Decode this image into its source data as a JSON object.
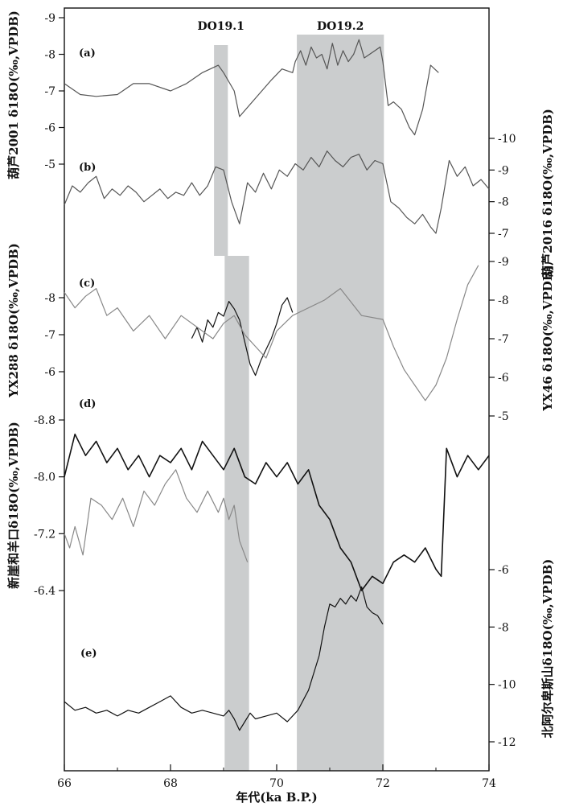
{
  "chart_data": {
    "type": "line",
    "x_axis": {
      "label": "年代(ka B.P.)",
      "range": [
        66,
        74
      ],
      "ticks": [
        66,
        68,
        70,
        72,
        74
      ]
    },
    "bands": [
      {
        "label": "DO19.1",
        "x": [
          68.82,
          69.08
        ],
        "panels": "a-b"
      },
      {
        "label": "",
        "x": [
          69.02,
          69.48
        ],
        "panels": "c-e"
      },
      {
        "label": "DO19.2",
        "x": [
          70.38,
          72.02
        ],
        "panels": "all"
      }
    ],
    "panels": [
      {
        "label": "(a)",
        "axis_side": "left",
        "axis_title": "葫芦2001 δ18O(‰,VPDB)",
        "ticks": [
          -9,
          -8,
          -7,
          -6,
          -5
        ],
        "tick_labels": [
          "-9",
          "-8",
          "-7",
          "-6",
          "-5"
        ],
        "series": [
          {
            "name": "",
            "color": "#555555",
            "x": [
              66.0,
              66.3,
              66.6,
              67.0,
              67.3,
              67.6,
              68.0,
              68.3,
              68.6,
              68.9,
              69.0,
              69.2,
              69.3,
              69.6,
              69.9,
              70.1,
              70.3,
              70.35,
              70.45,
              70.55,
              70.65,
              70.75,
              70.85,
              70.95,
              71.05,
              71.15,
              71.25,
              71.35,
              71.45,
              71.55,
              71.65,
              71.75,
              71.85,
              71.95,
              72.0,
              72.1,
              72.2,
              72.35,
              72.5,
              72.6,
              72.75,
              72.9,
              73.05
            ],
            "y": [
              -7.2,
              -6.9,
              -6.85,
              -6.9,
              -7.2,
              -7.2,
              -7.0,
              -7.2,
              -7.5,
              -7.7,
              -7.5,
              -7.0,
              -6.3,
              -6.8,
              -7.3,
              -7.6,
              -7.5,
              -7.8,
              -8.1,
              -7.7,
              -8.2,
              -7.9,
              -8.0,
              -7.6,
              -8.3,
              -7.7,
              -8.1,
              -7.8,
              -8.0,
              -8.4,
              -7.9,
              -8.0,
              -8.1,
              -8.2,
              -7.8,
              -6.6,
              -6.7,
              -6.5,
              -6.0,
              -5.8,
              -6.5,
              -7.7,
              -7.5
            ]
          }
        ]
      },
      {
        "label": "(b)",
        "axis_side": "right",
        "axis_title": "葫芦2016 δ18O(‰,VPDB)",
        "ticks": [
          -10,
          -9,
          -8,
          -7
        ],
        "tick_labels": [
          "-10",
          "-9",
          "-8",
          "-7"
        ],
        "series": [
          {
            "name": "",
            "color": "#555555",
            "x": [
              66.0,
              66.15,
              66.3,
              66.45,
              66.6,
              66.75,
              66.9,
              67.05,
              67.2,
              67.35,
              67.5,
              67.65,
              67.8,
              67.95,
              68.1,
              68.25,
              68.4,
              68.55,
              68.7,
              68.85,
              69.0,
              69.15,
              69.3,
              69.45,
              69.6,
              69.75,
              69.9,
              70.05,
              70.2,
              70.35,
              70.5,
              70.65,
              70.8,
              70.95,
              71.1,
              71.25,
              71.4,
              71.55,
              71.7,
              71.85,
              72.0,
              72.15,
              72.3,
              72.45,
              72.6,
              72.75,
              72.9,
              73.0,
              73.1,
              73.25,
              73.4,
              73.55,
              73.7,
              73.85,
              74.0
            ],
            "y": [
              -7.9,
              -8.5,
              -8.3,
              -8.6,
              -8.8,
              -8.1,
              -8.4,
              -8.2,
              -8.5,
              -8.3,
              -8.0,
              -8.2,
              -8.4,
              -8.1,
              -8.3,
              -8.2,
              -8.6,
              -8.2,
              -8.5,
              -9.1,
              -9.0,
              -8.0,
              -7.3,
              -8.6,
              -8.3,
              -8.9,
              -8.4,
              -9.0,
              -8.8,
              -9.2,
              -9.0,
              -9.4,
              -9.1,
              -9.6,
              -9.3,
              -9.1,
              -9.4,
              -9.5,
              -9.0,
              -9.3,
              -9.2,
              -8.0,
              -7.8,
              -7.5,
              -7.3,
              -7.6,
              -7.2,
              -7.0,
              -7.8,
              -9.3,
              -8.8,
              -9.1,
              -8.5,
              -8.7,
              -8.4
            ]
          }
        ]
      },
      {
        "label": "(c)",
        "axis_side": "left",
        "axis_title": "YX288 δ18O(‰,VPDB)",
        "ticks": [
          -8,
          -7,
          -6
        ],
        "tick_labels": [
          "-8",
          "-7",
          "-6"
        ],
        "series": [
          {
            "name": "",
            "color": "#111111",
            "x": [
              68.4,
              68.5,
              68.6,
              68.7,
              68.8,
              68.9,
              69.0,
              69.1,
              69.2,
              69.3,
              69.4,
              69.5,
              69.6,
              69.7,
              69.8,
              69.9,
              70.0,
              70.1,
              70.2,
              70.3
            ],
            "y": [
              -6.9,
              -7.2,
              -6.8,
              -7.4,
              -7.2,
              -7.6,
              -7.5,
              -7.9,
              -7.7,
              -7.4,
              -6.8,
              -6.2,
              -5.9,
              -6.3,
              -6.6,
              -6.9,
              -7.3,
              -7.8,
              -8.0,
              -7.6
            ]
          }
        ]
      },
      {
        "label": "",
        "axis_side": "right",
        "axis_title": "YX46 δ18O(‰,VPDB)",
        "ticks": [
          -9,
          -8,
          -7,
          -6,
          -5
        ],
        "tick_labels": [
          "-9",
          "-8",
          "-7",
          "-6",
          "-5"
        ],
        "series": [
          {
            "name": "",
            "color": "#888888",
            "x": [
              66.0,
              66.2,
              66.4,
              66.6,
              66.8,
              67.0,
              67.3,
              67.6,
              67.9,
              68.2,
              68.5,
              68.8,
              69.0,
              69.2,
              69.4,
              69.6,
              69.8,
              70.0,
              70.3,
              70.6,
              70.9,
              71.2,
              71.6,
              72.0,
              72.2,
              72.4,
              72.6,
              72.8,
              73.0,
              73.2,
              73.4,
              73.6,
              73.8
            ],
            "y": [
              -8.2,
              -7.8,
              -8.1,
              -8.3,
              -7.6,
              -7.8,
              -7.2,
              -7.6,
              -7.0,
              -7.6,
              -7.3,
              -7.0,
              -7.4,
              -7.6,
              -7.1,
              -6.8,
              -6.5,
              -7.2,
              -7.6,
              -7.8,
              -8.0,
              -8.3,
              -7.6,
              -7.5,
              -6.8,
              -6.2,
              -5.8,
              -5.4,
              -5.8,
              -6.5,
              -7.5,
              -8.4,
              -8.9
            ]
          }
        ]
      },
      {
        "label": "(d)",
        "axis_side": "left",
        "axis_title": "新崖和羊口δ18O(‰,VPDB)",
        "ticks": [
          -8.8,
          -8.0,
          -7.2,
          -6.4
        ],
        "tick_labels": [
          "-8.8",
          "-8.0",
          "-7.2",
          "-6.4"
        ],
        "series": [
          {
            "name": "",
            "color": "#111111",
            "x": [
              66.0,
              66.2,
              66.4,
              66.6,
              66.8,
              67.0,
              67.2,
              67.4,
              67.6,
              67.8,
              68.0,
              68.2,
              68.4,
              68.6,
              68.8,
              69.0,
              69.2,
              69.4,
              69.6,
              69.8,
              70.0,
              70.2,
              70.4,
              70.6,
              70.8,
              71.0,
              71.2,
              71.4,
              71.6,
              71.8,
              72.0,
              72.2,
              72.4,
              72.6,
              72.8,
              73.0,
              73.1,
              73.2,
              73.4,
              73.6,
              73.8,
              74.0
            ],
            "y": [
              -8.0,
              -8.6,
              -8.3,
              -8.5,
              -8.2,
              -8.4,
              -8.1,
              -8.3,
              -8.0,
              -8.3,
              -8.2,
              -8.4,
              -8.1,
              -8.5,
              -8.3,
              -8.1,
              -8.4,
              -8.0,
              -7.9,
              -8.2,
              -8.0,
              -8.2,
              -7.9,
              -8.1,
              -7.6,
              -7.4,
              -7.0,
              -6.8,
              -6.4,
              -6.6,
              -6.5,
              -6.8,
              -6.9,
              -6.8,
              -7.0,
              -6.7,
              -6.6,
              -8.4,
              -8.0,
              -8.3,
              -8.1,
              -8.3
            ]
          },
          {
            "name": "",
            "color": "#888888",
            "x": [
              66.0,
              66.1,
              66.2,
              66.35,
              66.5,
              66.7,
              66.9,
              67.1,
              67.3,
              67.5,
              67.7,
              67.9,
              68.1,
              68.3,
              68.5,
              68.7,
              68.9,
              69.0,
              69.1,
              69.2,
              69.3,
              69.45
            ],
            "y": [
              -7.2,
              -7.0,
              -7.3,
              -6.9,
              -7.7,
              -7.6,
              -7.4,
              -7.7,
              -7.3,
              -7.8,
              -7.6,
              -7.9,
              -8.1,
              -7.7,
              -7.5,
              -7.8,
              -7.5,
              -7.7,
              -7.4,
              -7.6,
              -7.1,
              -6.8
            ]
          }
        ]
      },
      {
        "label": "(e)",
        "axis_side": "right",
        "axis_title": "北阿尔卑斯山δ18O(‰,VPDB)",
        "ticks": [
          -6,
          -8,
          -10,
          -12
        ],
        "tick_labels": [
          "-6",
          "-8",
          "-10",
          "-12"
        ],
        "series": [
          {
            "name": "",
            "color": "#111111",
            "x": [
              66.0,
              66.2,
              66.4,
              66.6,
              66.8,
              67.0,
              67.2,
              67.4,
              67.6,
              67.8,
              68.0,
              68.2,
              68.4,
              68.6,
              68.8,
              69.0,
              69.1,
              69.2,
              69.3,
              69.4,
              69.5,
              69.6,
              69.8,
              70.0,
              70.2,
              70.4,
              70.6,
              70.8,
              70.9,
              71.0,
              71.1,
              71.2,
              71.3,
              71.4,
              71.5,
              71.6,
              71.7,
              71.8,
              71.9,
              72.0
            ],
            "y": [
              -10.6,
              -10.9,
              -10.8,
              -11.0,
              -10.9,
              -11.1,
              -10.9,
              -11.0,
              -10.8,
              -10.6,
              -10.4,
              -10.8,
              -11.0,
              -10.9,
              -11.0,
              -11.1,
              -10.9,
              -11.2,
              -11.6,
              -11.3,
              -11.0,
              -11.2,
              -11.1,
              -11.0,
              -11.3,
              -10.9,
              -10.2,
              -9.0,
              -8.0,
              -7.2,
              -7.3,
              -7.0,
              -7.2,
              -6.9,
              -7.1,
              -6.6,
              -7.3,
              -7.5,
              -7.6,
              -7.9
            ]
          }
        ]
      }
    ]
  }
}
